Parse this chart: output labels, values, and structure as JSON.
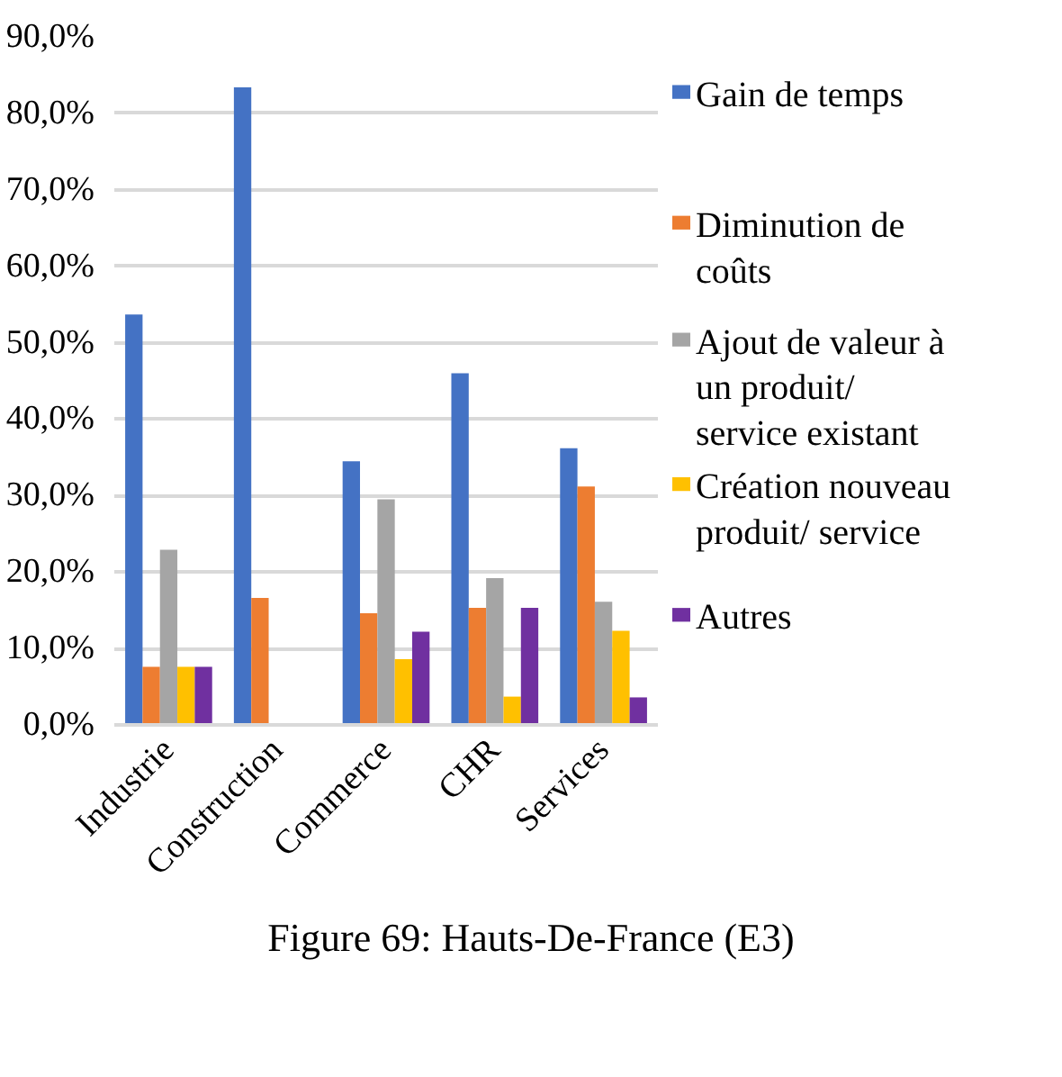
{
  "chart_data": {
    "type": "bar",
    "title": "Figure 69: Hauts-De-France (E3)",
    "categories": [
      "Industrie",
      "Construction",
      "Commerce",
      "CHR",
      "Services"
    ],
    "series": [
      {
        "name": "Gain de temps",
        "color": "#4472c4",
        "values": [
          53.7,
          83.4,
          34.5,
          46.0,
          36.2
        ]
      },
      {
        "name": "Diminution de coûts",
        "color": "#ed7d31",
        "values": [
          7.6,
          16.6,
          14.6,
          15.3,
          31.2
        ]
      },
      {
        "name": "Ajout de valeur à un produit/ service existant",
        "color": "#a5a5a5",
        "values": [
          22.9,
          0,
          29.5,
          19.2,
          16.1
        ]
      },
      {
        "name": "Création nouveau produit/ service",
        "color": "#ffc000",
        "values": [
          7.6,
          0,
          8.6,
          3.7,
          12.3
        ]
      },
      {
        "name": "Autres",
        "color": "#7030a0",
        "values": [
          7.6,
          0,
          12.2,
          15.3,
          3.6
        ]
      }
    ],
    "ylim": [
      0,
      90
    ],
    "yticks": [
      {
        "value": 0,
        "label": "0,0%"
      },
      {
        "value": 10,
        "label": "10,0%"
      },
      {
        "value": 20,
        "label": "20,0%"
      },
      {
        "value": 30,
        "label": "30,0%"
      },
      {
        "value": 40,
        "label": "40,0%"
      },
      {
        "value": 50,
        "label": "50,0%"
      },
      {
        "value": 60,
        "label": "60,0%"
      },
      {
        "value": 70,
        "label": "70,0%"
      },
      {
        "value": 80,
        "label": "80,0%"
      },
      {
        "value": 90,
        "label": "90,0%"
      }
    ],
    "grid": "y",
    "legend": "right"
  }
}
